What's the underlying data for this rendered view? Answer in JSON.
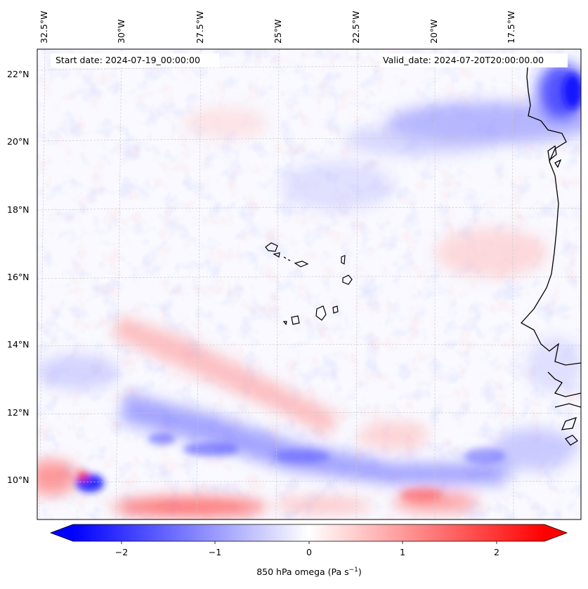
{
  "header": {
    "start_date": "Start date: 2024-07-19_00:00:00",
    "valid_date": "Valid_date: 2024-07-20T20:00:00.00"
  },
  "axes": {
    "lon_labels": [
      "32.5°W",
      "30°W",
      "27.5°W",
      "25°W",
      "22.5°W",
      "20°W",
      "17.5°W"
    ],
    "lat_labels": [
      "22°N",
      "20°N",
      "18°N",
      "16°N",
      "14°N",
      "12°N",
      "10°N"
    ]
  },
  "colorbar": {
    "ticks": [
      "−2",
      "−1",
      "0",
      "1",
      "2"
    ],
    "label": "850 hPa omega (Pa s",
    "label_sup": "−1",
    "label_end": ")",
    "range": [
      -2.6,
      2.6
    ],
    "colormap": "bwr",
    "extend": "both"
  },
  "colors": {
    "negative": "#0000ff",
    "zero": "#ffffff",
    "positive": "#ff0000",
    "coastline": "#000000"
  }
}
